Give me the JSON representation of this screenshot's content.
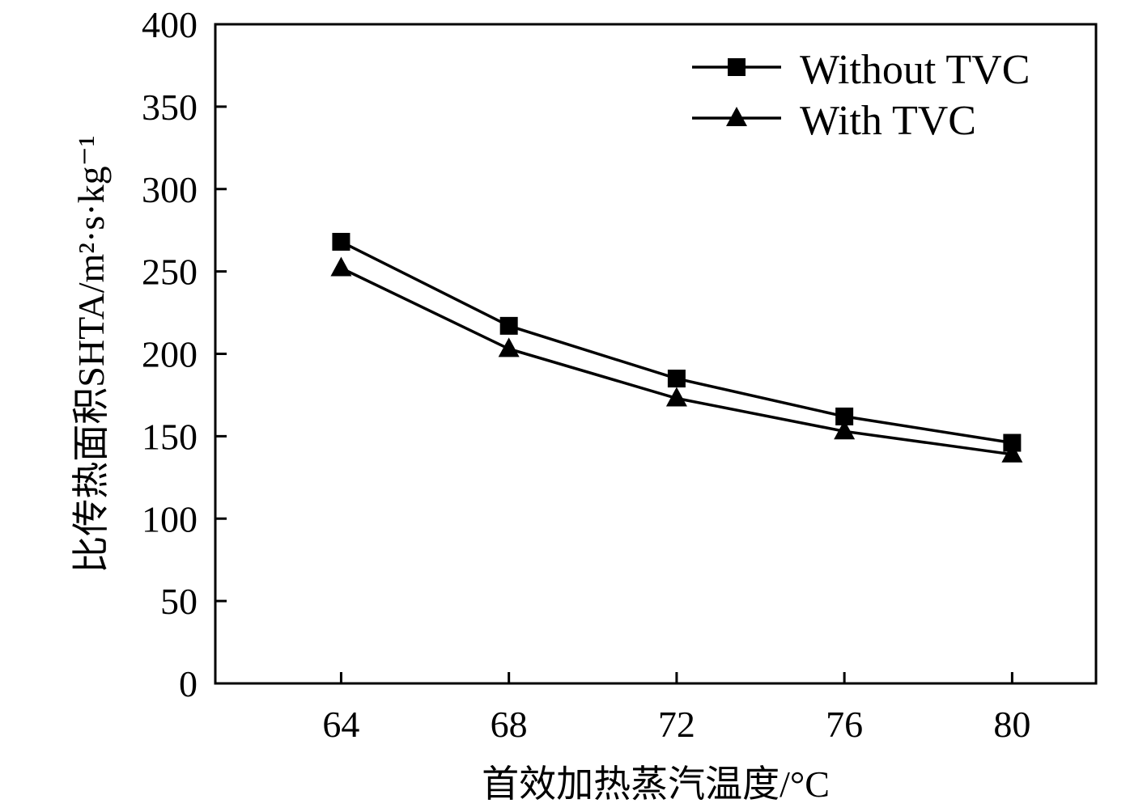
{
  "chart_data": {
    "type": "line",
    "x": [
      64,
      68,
      72,
      76,
      80
    ],
    "series": [
      {
        "name": "Without TVC",
        "marker": "square",
        "values": [
          268,
          217,
          185,
          162,
          146
        ]
      },
      {
        "name": "With TVC",
        "marker": "triangle",
        "values": [
          252,
          203,
          173,
          153,
          139
        ]
      }
    ],
    "xlabel": "首效加热蒸汽温度/°C",
    "ylabel": "比传热面积SHTA/m²·s·kg⁻¹",
    "ylim": [
      0,
      400
    ],
    "xlim": [
      61,
      82
    ],
    "xticks": [
      64,
      68,
      72,
      76,
      80
    ],
    "yticks": [
      0,
      50,
      100,
      150,
      200,
      250,
      300,
      350,
      400
    ],
    "legend_position": "top-right",
    "grid": false,
    "colors": {
      "line": "#000000",
      "background": "#ffffff"
    }
  }
}
